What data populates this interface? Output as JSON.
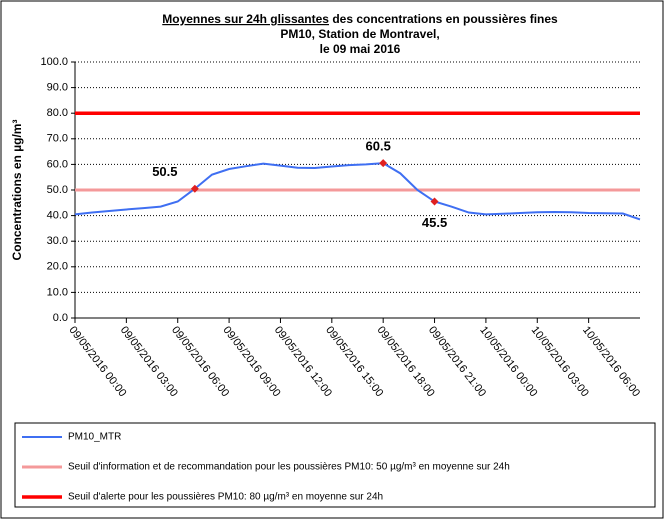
{
  "chart_data": {
    "type": "line",
    "title": [
      "Moyennes sur 24h glissantes",
      " des concentrations en poussières fines",
      "PM10, Station de Montravel,",
      "le 09 mai 2016"
    ],
    "y_label": "Concentrations en µg/m³",
    "categories": [
      "09/05/2016 00:00",
      null,
      null,
      "09/05/2016 03:00",
      null,
      null,
      "09/05/2016 06:00",
      null,
      null,
      "09/05/2016 09:00",
      null,
      null,
      "09/05/2016 12:00",
      null,
      null,
      "09/05/2016 15:00",
      null,
      null,
      "09/05/2016 18:00",
      null,
      null,
      "09/05/2016 21:00",
      null,
      null,
      "10/05/2016 00:00",
      null,
      null,
      "10/05/2016 03:00",
      null,
      null,
      "10/05/2016 06:00",
      null,
      null,
      null
    ],
    "series": [
      {
        "name": "PM10_MTR",
        "color": "#3f6ff2",
        "width": 2,
        "values": [
          40.5,
          41.2,
          41.8,
          42.4,
          42.9,
          43.5,
          45.5,
          50.5,
          56,
          58.2,
          59.3,
          60.3,
          59.5,
          58.7,
          58.6,
          59.2,
          59.7,
          60.0,
          60.5,
          56.5,
          50,
          45.5,
          43.5,
          41.2,
          40.5,
          40.7,
          41.0,
          41.3,
          41.4,
          41.3,
          41.0,
          40.9,
          40.8,
          38.5
        ],
        "value_labels": [
          null,
          null,
          null,
          null,
          null,
          null,
          null,
          "50.5",
          null,
          null,
          null,
          null,
          null,
          null,
          null,
          null,
          null,
          null,
          "60.5",
          null,
          null,
          "45.5",
          null,
          null,
          null,
          null,
          null,
          null,
          null,
          null,
          null,
          null,
          null,
          null
        ]
      },
      {
        "name": "Seuil d'information et de recommandation pour les poussières PM10: 50 µg/m³ en moyenne sur 24h",
        "color": "#f4999a",
        "width": 3,
        "values": [
          50,
          50,
          50,
          50,
          50,
          50,
          50,
          50,
          50,
          50,
          50,
          50,
          50,
          50,
          50,
          50,
          50,
          50,
          50,
          50,
          50,
          50,
          50,
          50,
          50,
          50,
          50,
          50,
          50,
          50,
          50,
          50,
          50,
          50
        ]
      },
      {
        "name": "Seuil d'alerte pour les poussières PM10: 80 µg/m³ en moyenne sur 24h",
        "color": "#ff0000",
        "width": 3.5,
        "values": [
          80,
          80,
          80,
          80,
          80,
          80,
          80,
          80,
          80,
          80,
          80,
          80,
          80,
          80,
          80,
          80,
          80,
          80,
          80,
          80,
          80,
          80,
          80,
          80,
          80,
          80,
          80,
          80,
          80,
          80,
          80,
          80,
          80,
          80
        ]
      }
    ],
    "label_color": "#e02020",
    "ylim": [
      0,
      100
    ],
    "yticks": [
      {
        "value": 0,
        "label": "0.0"
      },
      {
        "value": 10,
        "label": "10.0"
      },
      {
        "value": 20,
        "label": "20.0"
      },
      {
        "value": 30,
        "label": "30.0"
      },
      {
        "value": 40,
        "label": "40.0"
      },
      {
        "value": 50,
        "label": "50.0"
      },
      {
        "value": 60,
        "label": "60.0"
      },
      {
        "value": 70,
        "label": "70.0"
      },
      {
        "value": 80,
        "label": "80.0"
      },
      {
        "value": 90,
        "label": "90.0"
      },
      {
        "value": 100,
        "label": "100.0"
      }
    ],
    "grid": true,
    "legend": "bottom"
  }
}
